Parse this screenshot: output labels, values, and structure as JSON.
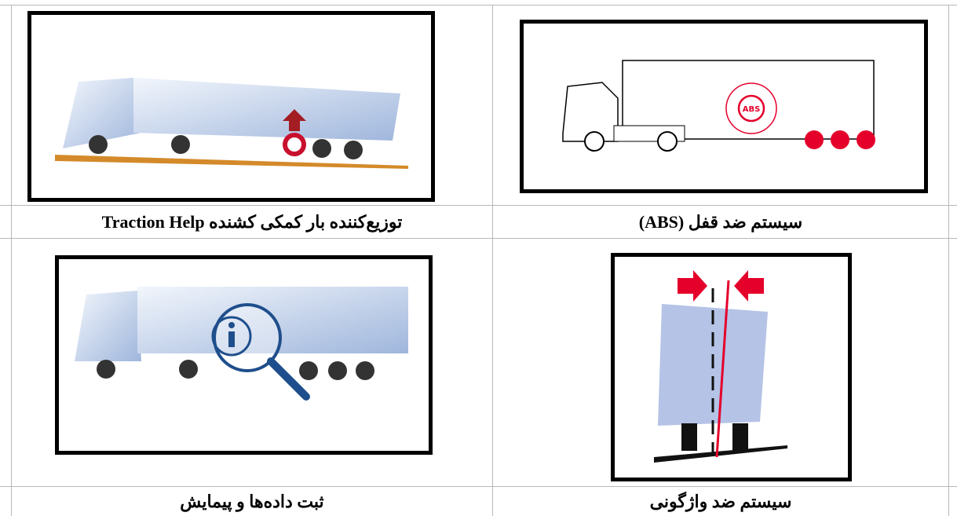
{
  "table": {
    "rows": [
      {
        "cells": [
          {
            "caption": "سیستم ضد قفل (ABS)",
            "image_text": "ABS"
          },
          {
            "caption": "توزیع‌کننده بار  کمکی کشنده Traction Help"
          }
        ]
      },
      {
        "cells": [
          {
            "caption": "سیستم ضد واژگونی"
          },
          {
            "caption": "ثبت داده‌ها و پیمایش"
          }
        ]
      }
    ]
  }
}
